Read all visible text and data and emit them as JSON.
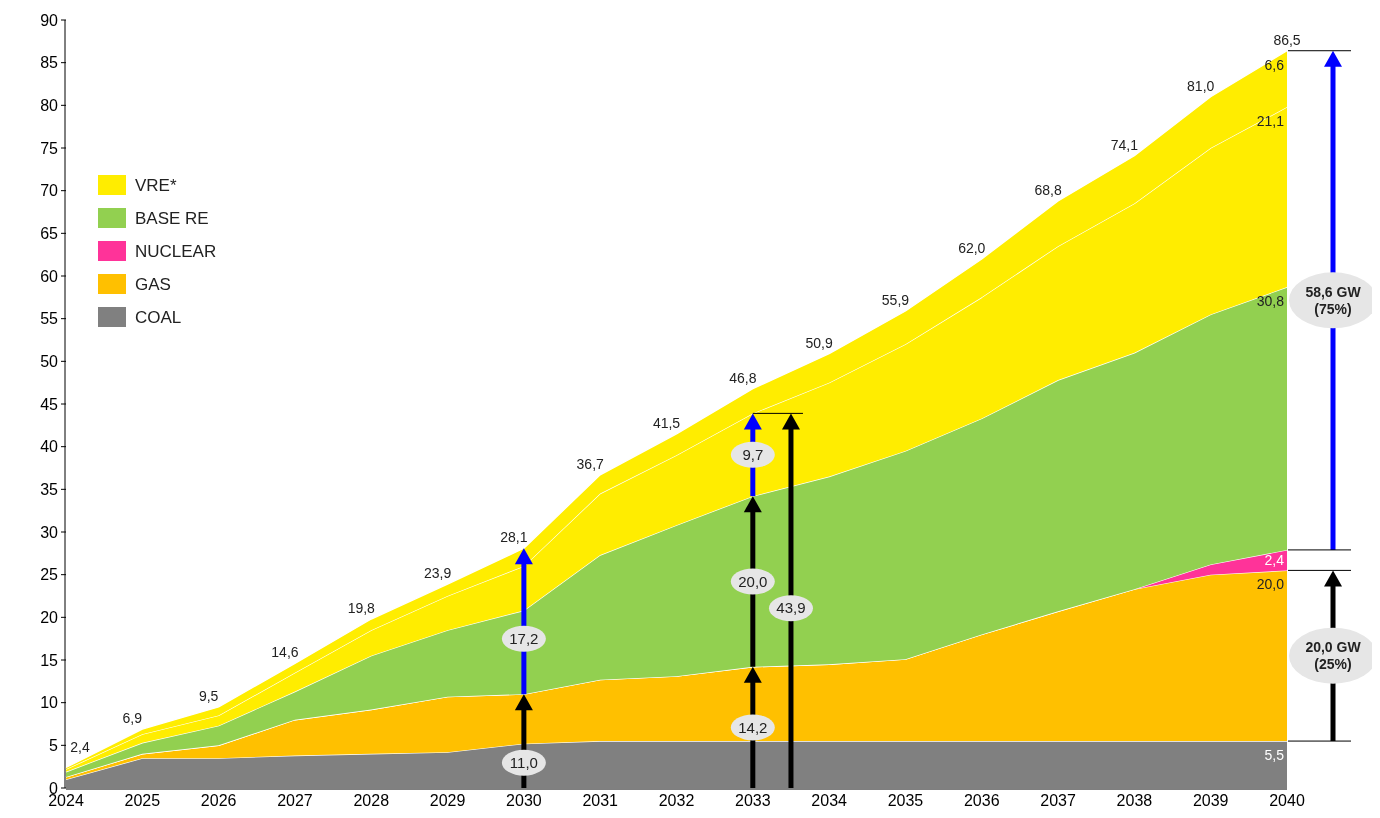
{
  "chart_data": {
    "type": "area",
    "stacked": true,
    "x": [
      2024,
      2025,
      2026,
      2027,
      2028,
      2029,
      2030,
      2031,
      2032,
      2033,
      2034,
      2035,
      2036,
      2037,
      2038,
      2039,
      2040
    ],
    "series": [
      {
        "name": "COAL",
        "color": "#808080",
        "values": [
          1.0,
          3.5,
          3.5,
          3.8,
          4.0,
          4.2,
          5.2,
          5.5,
          5.5,
          5.5,
          5.5,
          5.5,
          5.5,
          5.5,
          5.5,
          5.5,
          5.5
        ],
        "value_labels": [
          null,
          null,
          null,
          null,
          null,
          null,
          null,
          null,
          null,
          null,
          null,
          null,
          null,
          null,
          null,
          null,
          "5,5"
        ]
      },
      {
        "name": "GAS",
        "color": "#ffc000",
        "values": [
          0.3,
          0.5,
          1.5,
          4.2,
          5.2,
          6.5,
          5.8,
          7.2,
          7.6,
          8.7,
          9.0,
          9.6,
          12.5,
          15.2,
          17.8,
          19.5,
          20.0
        ],
        "value_labels": [
          null,
          null,
          null,
          null,
          null,
          null,
          null,
          null,
          null,
          null,
          null,
          null,
          null,
          null,
          null,
          null,
          "20,0"
        ]
      },
      {
        "name": "NUCLEAR",
        "color": "#ff3399",
        "values": [
          0,
          0,
          0,
          0,
          0,
          0,
          0,
          0,
          0,
          0,
          0,
          0,
          0,
          0,
          0,
          1.2,
          2.4
        ],
        "value_labels": [
          null,
          null,
          null,
          null,
          null,
          null,
          null,
          null,
          null,
          null,
          null,
          null,
          null,
          null,
          null,
          null,
          "2,4"
        ]
      },
      {
        "name": "BASE RE",
        "color": "#92d050",
        "values": [
          0.6,
          1.3,
          2.3,
          3.3,
          6.3,
          7.8,
          9.8,
          14.6,
          17.7,
          20.0,
          22.0,
          24.4,
          25.3,
          27.1,
          27.7,
          29.3,
          30.8
        ],
        "value_labels": [
          null,
          null,
          null,
          null,
          null,
          null,
          null,
          null,
          null,
          null,
          null,
          null,
          null,
          null,
          null,
          null,
          "30,8"
        ]
      },
      {
        "name": "VRE*",
        "color": "#ffed00",
        "values": [
          0.3,
          1.0,
          1.2,
          2.2,
          3.0,
          4.0,
          5.2,
          7.2,
          8.2,
          9.7,
          11.0,
          12.5,
          14.2,
          15.7,
          17.5,
          19.5,
          21.1
        ],
        "value_labels": [
          null,
          null,
          null,
          null,
          null,
          null,
          null,
          null,
          null,
          null,
          null,
          null,
          null,
          null,
          null,
          null,
          "21,1"
        ]
      },
      {
        "color": "#ffed00",
        "values": [
          0.2,
          0.6,
          1.0,
          1.1,
          1.3,
          1.4,
          2.1,
          2.2,
          2.5,
          2.9,
          3.4,
          3.9,
          4.5,
          5.3,
          5.6,
          6.0,
          6.6
        ],
        "value_labels": [
          null,
          null,
          null,
          null,
          null,
          null,
          null,
          null,
          null,
          null,
          null,
          null,
          null,
          null,
          null,
          null,
          "6,6"
        ]
      }
    ],
    "totals": [
      "2,4",
      "6,9",
      "9,5",
      "14,6",
      "19,8",
      "23,9",
      "28,1",
      "36,7",
      "41,5",
      "46,8",
      "50,9",
      "55,9",
      "62,0",
      "68,8",
      "74,1",
      "81,0",
      "86,5"
    ],
    "annotations": [
      "11,0",
      "17,2",
      "14,2",
      "20,0",
      "9,7",
      "43,9",
      "20,0 GW\n(25%)",
      "58,6 GW\n(75%)"
    ],
    "xlim": [
      2024,
      2040
    ],
    "xticks": [
      2024,
      2025,
      2026,
      2027,
      2028,
      2029,
      2030,
      2031,
      2032,
      2033,
      2034,
      2035,
      2036,
      2037,
      2038,
      2039,
      2040
    ],
    "ylim": [
      0,
      90
    ],
    "yticks": [
      0,
      5,
      10,
      15,
      20,
      25,
      30,
      35,
      40,
      45,
      50,
      55,
      60,
      65,
      70,
      75,
      80,
      85,
      90
    ],
    "legend": "top left",
    "grid": false
  }
}
